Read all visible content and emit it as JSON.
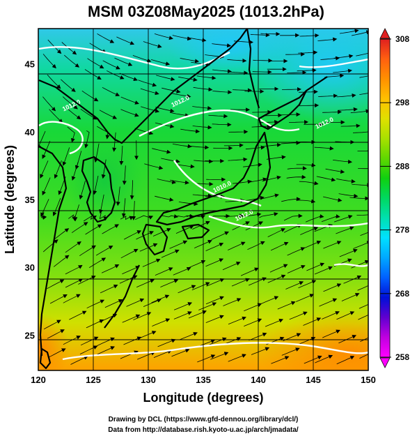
{
  "figure": {
    "title": "MSM 03Z08May2025 (1013.2hPa)",
    "xlabel": "Longitude (degrees)",
    "ylabel": "Latitude  (degrees)",
    "credit_line1": "Drawing by DCL (https://www.gfd-dennou.org/library/dcl/)",
    "credit_line2": "Data from http://database.rish.kyoto-u.ac.jp/arch/jmadata/"
  },
  "map": {
    "lon_range": [
      120,
      150
    ],
    "lat_range": [
      22.4,
      47.6
    ],
    "lon_ticks": [
      "120",
      "125",
      "130",
      "135",
      "140",
      "145",
      "150"
    ],
    "lat_ticks": [
      "25",
      "30",
      "35",
      "40",
      "45"
    ],
    "contour_labels": [
      {
        "text": "1012.0",
        "lon": 122.3,
        "lat": 41.5
      },
      {
        "text": "1012.0",
        "lon": 132.2,
        "lat": 41.8
      },
      {
        "text": "1010.0",
        "lon": 136.0,
        "lat": 35.5
      },
      {
        "text": "1012.0",
        "lon": 145.3,
        "lat": 40.2
      },
      {
        "text": "1012.0",
        "lon": 138.0,
        "lat": 33.4
      }
    ]
  },
  "colorbar": {
    "ticks": [
      "308",
      "298",
      "288",
      "278",
      "268",
      "258"
    ],
    "range": [
      258,
      308
    ],
    "colors": [
      "#ff00ff",
      "#c000e0",
      "#6000d0",
      "#0010d8",
      "#0060ff",
      "#00a8ff",
      "#00e0ff",
      "#00e0b0",
      "#00d860",
      "#10d010",
      "#60d800",
      "#a8e000",
      "#e0e000",
      "#ffc000",
      "#ff9000",
      "#ff6010",
      "#e02020"
    ]
  }
}
